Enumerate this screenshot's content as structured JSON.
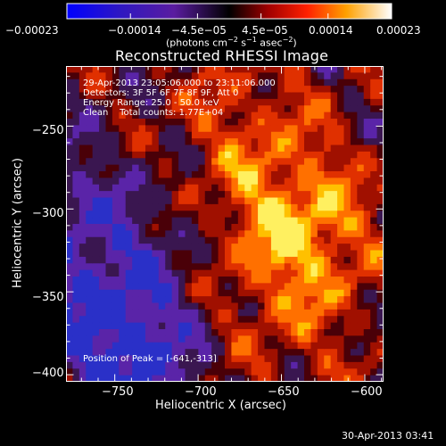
{
  "chart_data": {
    "type": "heatmap",
    "title": "Reconstructed RHESSI Image",
    "xlabel": "Heliocentric X (arcsec)",
    "ylabel": "Heliocentric Y (arcsec)",
    "xlim": [
      -779,
      -589
    ],
    "ylim": [
      -404,
      -214
    ],
    "xticks": [
      -750,
      -700,
      -650,
      -600
    ],
    "xtick_labels": [
      "−750",
      "−700",
      "−650",
      "−600"
    ],
    "yticks": [
      -250,
      -300,
      -350,
      -400
    ],
    "ytick_labels": [
      "−250",
      "−300",
      "−350",
      "−400"
    ],
    "colorbar": {
      "min": -0.00023,
      "max": 0.00023,
      "tick_labels": [
        "−0.00023",
        "−0.00014",
        "−4.5e−05",
        "4.5e−05",
        "0.00014",
        "0.00023"
      ],
      "units_prefix": "(photons cm",
      "units_exp1": "−2",
      "units_mid": " s",
      "units_exp2": "−1",
      "units_mid2": " asec",
      "units_exp3": "−2",
      "units_suffix": ")"
    },
    "annotations": {
      "time_range": "29-Apr-2013 23:05:06.000 to 23:11:06.000",
      "detectors": "Detectors: 3F 5F 6F 7F 8F 9F, Att 0",
      "energy": "Energy Range: 25.0 - 50.0 keV",
      "method": "Clean    Total counts: 1.77E+04",
      "peak": "Position of Peak = [-641,-313]"
    },
    "peak_position": [
      -641,
      -313
    ],
    "total_counts": 17700,
    "energy_range_kev": [
      25.0,
      50.0
    ]
  },
  "footer": {
    "timestamp": "30-Apr-2013 03:41"
  }
}
